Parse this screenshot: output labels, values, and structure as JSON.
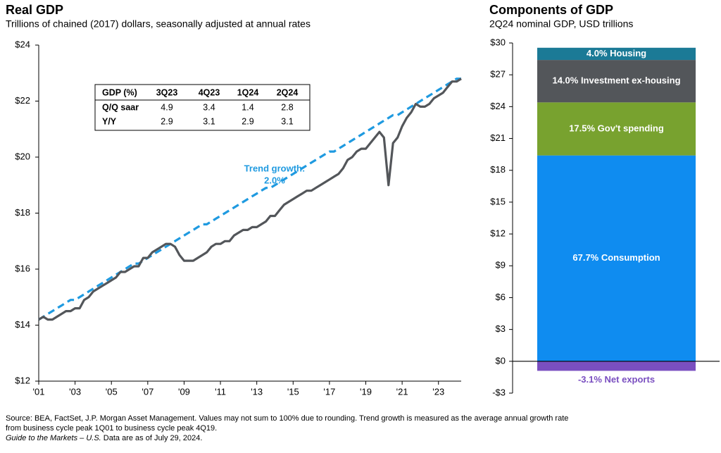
{
  "chart_data": [
    {
      "type": "line",
      "title": "Real GDP",
      "subtitle": "Trillions of chained (2017) dollars, seasonally adjusted at annual rates",
      "categories": [
        "'01",
        null,
        null,
        null,
        null,
        null,
        null,
        null,
        "'03",
        null,
        null,
        null,
        null,
        null,
        null,
        null,
        "'05",
        null,
        null,
        null,
        null,
        null,
        null,
        null,
        "'07",
        null,
        null,
        null,
        null,
        null,
        null,
        null,
        "'09",
        null,
        null,
        null,
        null,
        null,
        null,
        null,
        "'11",
        null,
        null,
        null,
        null,
        null,
        null,
        null,
        "'13",
        null,
        null,
        null,
        null,
        null,
        null,
        null,
        "'15",
        null,
        null,
        null,
        null,
        null,
        null,
        null,
        "'17",
        null,
        null,
        null,
        null,
        null,
        null,
        null,
        "'19",
        null,
        null,
        null,
        null,
        null,
        null,
        null,
        "'21",
        null,
        null,
        null,
        null,
        null,
        null,
        null,
        "'23",
        null,
        null,
        null,
        null,
        null
      ],
      "series": [
        {
          "color": "#53565a",
          "values": [
            14.2,
            14.3,
            14.2,
            14.2,
            14.3,
            14.4,
            14.5,
            14.5,
            14.6,
            14.6,
            14.9,
            15.0,
            15.2,
            15.3,
            15.4,
            15.5,
            15.6,
            15.7,
            15.9,
            15.9,
            16.0,
            16.1,
            16.1,
            16.4,
            16.4,
            16.6,
            16.7,
            16.8,
            16.9,
            16.9,
            16.8,
            16.5,
            16.3,
            16.3,
            16.3,
            16.4,
            16.5,
            16.6,
            16.8,
            16.9,
            16.9,
            17.0,
            17.0,
            17.2,
            17.3,
            17.4,
            17.4,
            17.5,
            17.5,
            17.6,
            17.7,
            17.9,
            17.9,
            18.1,
            18.3,
            18.4,
            18.5,
            18.6,
            18.7,
            18.8,
            18.8,
            18.9,
            19.0,
            19.1,
            19.2,
            19.3,
            19.4,
            19.6,
            19.9,
            20.0,
            20.2,
            20.3,
            20.3,
            20.5,
            20.7,
            20.9,
            20.7,
            19.0,
            20.5,
            20.7,
            21.1,
            21.4,
            21.6,
            21.9,
            21.8,
            21.8,
            21.9,
            22.1,
            22.2,
            22.3,
            22.5,
            22.7,
            22.7,
            22.8
          ]
        },
        {
          "color": "#1f9ae0",
          "dashed": true,
          "values": [
            14.2,
            14.3,
            14.4,
            14.5,
            14.6,
            14.7,
            14.8,
            14.9,
            14.9,
            15.0,
            15.1,
            15.2,
            15.3,
            15.4,
            15.5,
            15.6,
            15.7,
            15.8,
            15.9,
            16.0,
            16.1,
            16.2,
            16.2,
            16.3,
            16.4,
            16.5,
            16.6,
            16.7,
            16.8,
            16.9,
            17.0,
            17.1,
            17.2,
            17.3,
            17.4,
            17.5,
            17.6,
            17.6,
            17.7,
            17.8,
            17.9,
            18.0,
            18.1,
            18.2,
            18.3,
            18.4,
            18.5,
            18.6,
            18.7,
            18.8,
            18.9,
            18.9,
            19.0,
            19.1,
            19.2,
            19.3,
            19.4,
            19.5,
            19.6,
            19.7,
            19.8,
            19.9,
            20.0,
            20.1,
            20.2,
            20.2,
            20.3,
            20.4,
            20.5,
            20.6,
            20.7,
            20.8,
            20.9,
            21.0,
            21.1,
            21.2,
            21.3,
            21.4,
            21.5,
            21.5,
            21.6,
            21.7,
            21.8,
            21.9,
            22.0,
            22.1,
            22.2,
            22.3,
            22.4,
            22.5,
            22.6,
            22.7,
            22.8,
            22.8
          ]
        }
      ],
      "ylim": [
        12,
        24
      ],
      "yticks": [
        {
          "value": 12,
          "label": "$12"
        },
        {
          "value": 14,
          "label": "$14"
        },
        {
          "value": 16,
          "label": "$16"
        },
        {
          "value": 18,
          "label": "$18"
        },
        {
          "value": 20,
          "label": "$20"
        },
        {
          "value": 22,
          "label": "$22"
        },
        {
          "value": 24,
          "label": "$24"
        }
      ],
      "annotation": [
        "Trend growth:",
        "2.0%"
      ],
      "table": {
        "header": [
          "GDP (%)",
          "3Q23",
          "4Q23",
          "1Q24",
          "2Q24"
        ],
        "rows": [
          [
            "Q/Q saar",
            4.9,
            3.4,
            1.4,
            2.8
          ],
          [
            "Y/Y",
            2.9,
            3.1,
            2.9,
            3.1
          ]
        ]
      }
    },
    {
      "type": "stacked_bar",
      "title": "Components of GDP",
      "subtitle": "2Q24 nominal GDP, USD trillions",
      "series": [
        {
          "name": "67.7% Consumption",
          "color": "#0f8cf0",
          "values": [
            19.4
          ]
        },
        {
          "name": "17.5% Gov't spending",
          "color": "#78a22f",
          "values": [
            5.0
          ]
        },
        {
          "name": "14.0% Investment ex-housing",
          "color": "#53565a",
          "values": [
            4.0
          ]
        },
        {
          "name": "4.0% Housing",
          "color": "#1b7a96",
          "values": [
            1.15
          ]
        },
        {
          "name": "-3.1% Net exports",
          "color": "#7a4fc0",
          "values": [
            -0.9
          ]
        }
      ],
      "ylim": [
        -3,
        30
      ],
      "yticks": [
        {
          "value": -3,
          "label": "-$3"
        },
        {
          "value": 0,
          "label": "$0"
        },
        {
          "value": 3,
          "label": "$3"
        },
        {
          "value": 6,
          "label": "$6"
        },
        {
          "value": 9,
          "label": "$9"
        },
        {
          "value": 12,
          "label": "$12"
        },
        {
          "value": 15,
          "label": "$15"
        },
        {
          "value": 18,
          "label": "$18"
        },
        {
          "value": 21,
          "label": "$21"
        },
        {
          "value": 24,
          "label": "$24"
        },
        {
          "value": 27,
          "label": "$27"
        },
        {
          "value": 30,
          "label": "$30"
        }
      ]
    }
  ],
  "footnote": [
    "Source: BEA, FactSet, J.P. Morgan Asset Management. Values may not sum to 100% due to rounding. Trend growth is measured as the average annual growth rate",
    "from business cycle peak 1Q01 to business cycle peak 4Q19."
  ],
  "footnote_source": "Guide to the Markets – U.S.",
  "footnote_date": " Data are as of July 29, 2024."
}
